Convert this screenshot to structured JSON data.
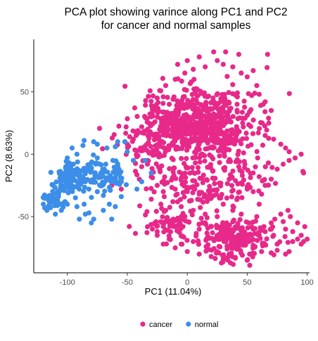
{
  "chart_data": {
    "type": "scatter",
    "title": [
      "PCA plot showing varince along PC1 and PC2",
      "for cancer and normal samples"
    ],
    "xlabel": "PC1 (11.04%)",
    "ylabel": "PC2 (8.63%)",
    "xlim": [
      -128,
      102
    ],
    "ylim": [
      -95,
      92
    ],
    "xticks": [
      -100,
      -50,
      0,
      50,
      100
    ],
    "yticks": [
      -50,
      0,
      50
    ],
    "grid": false,
    "legend_position": "bottom",
    "series": [
      {
        "name": "cancer",
        "color": "#E7298A",
        "regions": [
          {
            "count": 700,
            "cx": 10,
            "cy": 22,
            "rx": 48,
            "ry": 28
          },
          {
            "count": 150,
            "cx": 15,
            "cy": -22,
            "rx": 55,
            "ry": 20
          },
          {
            "count": 200,
            "cx": 40,
            "cy": -68,
            "rx": 30,
            "ry": 14
          },
          {
            "count": 80,
            "cx": -10,
            "cy": -55,
            "rx": 28,
            "ry": 14
          },
          {
            "count": 50,
            "cx": -35,
            "cy": 5,
            "rx": 22,
            "ry": 14
          }
        ],
        "points": [
          [
            -23,
            51
          ],
          [
            -20,
            46
          ],
          [
            -18,
            55
          ],
          [
            -15,
            40
          ],
          [
            -45,
            12
          ],
          [
            -52,
            10
          ],
          [
            22,
            82
          ],
          [
            32,
            82
          ],
          [
            43,
            80
          ],
          [
            67,
            80
          ],
          [
            55,
            67
          ],
          [
            -28,
            15
          ],
          [
            -33,
            -5
          ],
          [
            -40,
            -20
          ],
          [
            -55,
            -28
          ],
          [
            -60,
            -20
          ],
          [
            -63,
            -25
          ],
          [
            -30,
            -36
          ],
          [
            -22,
            -40
          ],
          [
            -18,
            -45
          ],
          [
            -12,
            -38
          ],
          [
            -5,
            -42
          ],
          [
            -25,
            -62
          ],
          [
            -15,
            -68
          ],
          [
            -5,
            -72
          ],
          [
            5,
            -70
          ],
          [
            30,
            -84
          ],
          [
            36,
            -87
          ],
          [
            50,
            -85
          ],
          [
            52,
            -80
          ],
          [
            62,
            -78
          ],
          [
            70,
            -79
          ],
          [
            75,
            -77
          ],
          [
            82,
            -80
          ],
          [
            85,
            -78
          ],
          [
            88,
            -70
          ],
          [
            92,
            -68
          ],
          [
            95,
            -72
          ],
          [
            97,
            -70
          ],
          [
            100,
            -68
          ],
          [
            75,
            -72
          ],
          [
            72,
            -65
          ],
          [
            82,
            -60
          ],
          [
            88,
            -62
          ],
          [
            95,
            -65
          ],
          [
            92,
            -55
          ],
          [
            98,
            -58
          ],
          [
            86,
            -50
          ],
          [
            78,
            -48
          ],
          [
            73,
            -52
          ],
          [
            84,
            -45
          ],
          [
            80,
            -54
          ],
          [
            64,
            -58
          ],
          [
            70,
            -55
          ],
          [
            58,
            -50
          ],
          [
            60,
            -40
          ],
          [
            55,
            -30
          ],
          [
            62,
            -32
          ],
          [
            50,
            -28
          ],
          [
            42,
            -35
          ],
          [
            35,
            -20
          ],
          [
            43,
            -10
          ],
          [
            48,
            -8
          ],
          [
            55,
            -15
          ],
          [
            60,
            -18
          ],
          [
            65,
            -25
          ],
          [
            70,
            -20
          ],
          [
            75,
            -12
          ],
          [
            80,
            -8
          ],
          [
            85,
            -5
          ],
          [
            90,
            -3
          ],
          [
            95,
            0
          ],
          [
            82,
            5
          ],
          [
            78,
            8
          ],
          [
            72,
            12
          ],
          [
            85,
            2
          ],
          [
            97,
            -15
          ],
          [
            65,
            15
          ],
          [
            68,
            25
          ],
          [
            70,
            35
          ],
          [
            65,
            42
          ],
          [
            60,
            48
          ],
          [
            58,
            55
          ],
          [
            50,
            62
          ],
          [
            45,
            65
          ],
          [
            38,
            70
          ],
          [
            30,
            72
          ],
          [
            25,
            75
          ],
          [
            15,
            70
          ],
          [
            5,
            68
          ],
          [
            -2,
            65
          ],
          [
            -10,
            60
          ],
          [
            -8,
            72
          ],
          [
            0,
            75
          ],
          [
            10,
            78
          ],
          [
            -32,
            25
          ],
          [
            -30,
            30
          ],
          [
            -28,
            38
          ],
          [
            -25,
            45
          ],
          [
            -33,
            20
          ],
          [
            -38,
            22
          ],
          [
            -43,
            18
          ],
          [
            -48,
            14
          ],
          [
            -50,
            8
          ],
          [
            -42,
            -2
          ],
          [
            -38,
            -10
          ],
          [
            -30,
            -18
          ],
          [
            -25,
            -25
          ],
          [
            -20,
            -30
          ],
          [
            -10,
            -28
          ],
          [
            0,
            -30
          ],
          [
            10,
            -32
          ],
          [
            20,
            -35
          ],
          [
            30,
            -40
          ],
          [
            38,
            -45
          ],
          [
            45,
            -48
          ],
          [
            25,
            -50
          ],
          [
            15,
            -48
          ],
          [
            5,
            -45
          ],
          [
            -5,
            -50
          ],
          [
            -15,
            -55
          ],
          [
            -20,
            -58
          ],
          [
            -25,
            -65
          ],
          [
            -20,
            -72
          ],
          [
            -10,
            -75
          ],
          [
            0,
            -78
          ],
          [
            10,
            -80
          ],
          [
            20,
            -82
          ],
          [
            25,
            -78
          ],
          [
            35,
            -80
          ],
          [
            40,
            -75
          ],
          [
            45,
            -70
          ],
          [
            50,
            -65
          ],
          [
            55,
            -60
          ],
          [
            60,
            -65
          ],
          [
            65,
            -62
          ],
          [
            70,
            -60
          ],
          [
            30,
            -62
          ],
          [
            20,
            -58
          ],
          [
            10,
            -60
          ]
        ]
      },
      {
        "name": "normal",
        "color": "#3C8EE8",
        "regions": [
          {
            "count": 110,
            "cx": -95,
            "cy": -18,
            "rx": 16,
            "ry": 14
          },
          {
            "count": 40,
            "cx": -110,
            "cy": -35,
            "rx": 8,
            "ry": 9
          },
          {
            "count": 40,
            "cx": -72,
            "cy": -15,
            "rx": 12,
            "ry": 14
          },
          {
            "count": 25,
            "cx": -60,
            "cy": -18,
            "rx": 9,
            "ry": 10
          }
        ],
        "points": [
          [
            -120,
            -40
          ],
          [
            -115,
            -38
          ],
          [
            -117,
            -45
          ],
          [
            -110,
            -48
          ],
          [
            -105,
            -45
          ],
          [
            -100,
            -40
          ],
          [
            -108,
            -30
          ],
          [
            -112,
            -25
          ],
          [
            -106,
            -22
          ],
          [
            -112,
            -34
          ],
          [
            -90,
            -52
          ],
          [
            -85,
            -48
          ],
          [
            -82,
            -47
          ],
          [
            -80,
            -55
          ],
          [
            -78,
            -52
          ],
          [
            -63,
            -52
          ],
          [
            -92,
            -42
          ],
          [
            -86,
            -40
          ],
          [
            -70,
            -45
          ],
          [
            -65,
            -40
          ],
          [
            -60,
            -42
          ],
          [
            -55,
            -34
          ],
          [
            -70,
            -33
          ],
          [
            -75,
            -30
          ],
          [
            -82,
            -28
          ],
          [
            -87,
            7
          ],
          [
            -86,
            11
          ],
          [
            -78,
            10
          ],
          [
            -75,
            8
          ],
          [
            -67,
            5
          ],
          [
            -60,
            6
          ],
          [
            -58,
            10
          ],
          [
            -52,
            10
          ],
          [
            -50,
            2
          ],
          [
            -45,
            -5
          ],
          [
            -35,
            -5
          ],
          [
            -30,
            -15
          ],
          [
            -38,
            -22
          ],
          [
            -42,
            -28
          ],
          [
            -55,
            -22
          ],
          [
            -57,
            -12
          ],
          [
            -62,
            -5
          ],
          [
            -68,
            -8
          ],
          [
            -72,
            -15
          ],
          [
            -78,
            -20
          ],
          [
            -95,
            -8
          ],
          [
            -100,
            -12
          ],
          [
            -105,
            -18
          ],
          [
            -98,
            -25
          ],
          [
            -90,
            -28
          ],
          [
            -85,
            -22
          ],
          [
            -80,
            -12
          ],
          [
            -92,
            0
          ],
          [
            -96,
            5
          ],
          [
            -100,
            -3
          ],
          [
            -75,
            -3
          ]
        ]
      }
    ]
  }
}
